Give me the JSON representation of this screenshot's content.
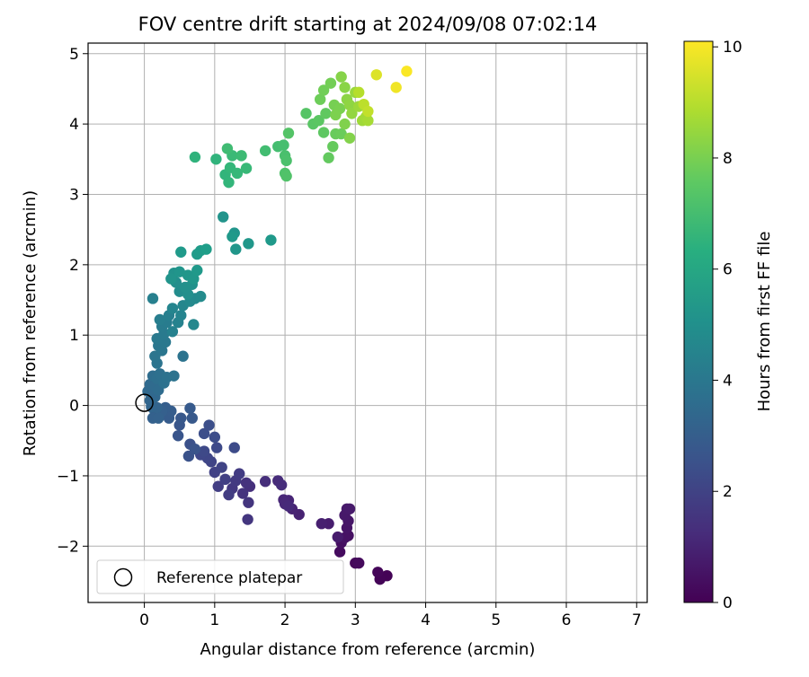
{
  "chart_data": {
    "type": "scatter",
    "title": "FOV centre drift starting at 2024/09/08 07:02:14",
    "xlabel": "Angular distance from reference (arcmin)",
    "ylabel": "Rotation from reference (arcmin)",
    "xlim": [
      -0.8,
      7.15
    ],
    "ylim": [
      -2.8,
      5.15
    ],
    "x_ticks": [
      0,
      1,
      2,
      3,
      4,
      5,
      6,
      7
    ],
    "y_ticks": [
      -2,
      -1,
      0,
      1,
      2,
      3,
      4,
      5
    ],
    "x_tick_labels": [
      "0",
      "1",
      "2",
      "3",
      "4",
      "5",
      "6",
      "7"
    ],
    "y_tick_labels": [
      "−2",
      "−1",
      "0",
      "1",
      "2",
      "3",
      "4",
      "5"
    ],
    "grid": true,
    "colormap": "viridis",
    "colorbar": {
      "label": "Hours from first FF file",
      "range": [
        0,
        10.1
      ],
      "ticks": [
        0,
        2,
        4,
        6,
        8,
        10
      ],
      "tick_labels": [
        "0",
        "2",
        "4",
        "6",
        "8",
        "10"
      ]
    },
    "legend": {
      "position": "lower-left",
      "entries": [
        "Reference platepar"
      ]
    },
    "reference_point": {
      "x": 0,
      "y": 0,
      "label": "Reference platepar"
    },
    "series": [
      {
        "points": [
          [
            3.45,
            -2.42,
            0.05
          ],
          [
            3.35,
            -2.47,
            0.1
          ],
          [
            3.32,
            -2.37,
            0.15
          ],
          [
            3.0,
            -2.24,
            0.2
          ],
          [
            3.05,
            -2.24,
            0.25
          ],
          [
            2.78,
            -2.08,
            0.3
          ],
          [
            2.8,
            -1.95,
            0.4
          ],
          [
            2.9,
            -1.85,
            0.45
          ],
          [
            2.85,
            -1.88,
            0.5
          ],
          [
            2.88,
            -1.74,
            0.55
          ],
          [
            2.9,
            -1.64,
            0.6
          ],
          [
            2.85,
            -1.56,
            0.65
          ],
          [
            2.88,
            -1.47,
            0.7
          ],
          [
            2.92,
            -1.47,
            0.72
          ],
          [
            2.75,
            -1.87,
            0.78
          ],
          [
            2.62,
            -1.68,
            0.82
          ],
          [
            2.52,
            -1.68,
            0.88
          ],
          [
            2.2,
            -1.55,
            0.95
          ],
          [
            2.1,
            -1.47,
            1.0
          ],
          [
            2.05,
            -1.35,
            1.05
          ],
          [
            1.98,
            -1.34,
            1.1
          ],
          [
            2.0,
            -1.4,
            1.15
          ],
          [
            2.05,
            -1.43,
            1.2
          ],
          [
            1.9,
            -1.07,
            1.25
          ],
          [
            1.95,
            -1.13,
            1.3
          ],
          [
            1.72,
            -1.08,
            1.35
          ],
          [
            1.5,
            -1.15,
            1.4
          ],
          [
            1.45,
            -1.1,
            1.45
          ],
          [
            1.4,
            -1.25,
            1.5
          ],
          [
            1.48,
            -1.38,
            1.55
          ],
          [
            1.47,
            -1.62,
            1.6
          ],
          [
            1.25,
            -1.18,
            1.65
          ],
          [
            1.3,
            -1.07,
            1.7
          ],
          [
            1.35,
            -0.97,
            1.75
          ],
          [
            1.2,
            -1.27,
            1.8
          ],
          [
            1.05,
            -1.15,
            1.85
          ],
          [
            1.15,
            -1.05,
            1.9
          ],
          [
            1.0,
            -0.95,
            1.95
          ],
          [
            1.1,
            -0.88,
            2.0
          ],
          [
            0.95,
            -0.8,
            2.05
          ],
          [
            0.9,
            -0.75,
            2.1
          ],
          [
            0.8,
            -0.7,
            2.15
          ],
          [
            0.85,
            -0.65,
            2.2
          ],
          [
            1.03,
            -0.6,
            2.25
          ],
          [
            1.28,
            -0.6,
            2.3
          ],
          [
            1.0,
            -0.45,
            2.35
          ],
          [
            0.85,
            -0.4,
            2.4
          ],
          [
            0.92,
            -0.28,
            2.45
          ],
          [
            0.65,
            -0.55,
            2.5
          ],
          [
            0.63,
            -0.72,
            2.55
          ],
          [
            0.72,
            -0.62,
            2.6
          ],
          [
            0.48,
            -0.43,
            2.65
          ],
          [
            0.5,
            -0.28,
            2.7
          ],
          [
            0.52,
            -0.18,
            2.75
          ],
          [
            0.68,
            -0.18,
            2.8
          ],
          [
            0.65,
            -0.04,
            2.85
          ],
          [
            0.35,
            -0.18,
            2.9
          ],
          [
            0.38,
            -0.08,
            2.95
          ],
          [
            0.3,
            -0.03,
            3.0
          ],
          [
            0.25,
            -0.08,
            3.05
          ],
          [
            0.15,
            -0.08,
            3.1
          ],
          [
            0.12,
            -0.18,
            3.12
          ],
          [
            0.2,
            -0.18,
            3.15
          ],
          [
            0.18,
            -0.03,
            3.2
          ],
          [
            0.1,
            -0.02,
            3.25
          ],
          [
            0.08,
            0.07,
            3.3
          ],
          [
            0.15,
            0.12,
            3.35
          ],
          [
            0.05,
            0.2,
            3.4
          ],
          [
            0.08,
            0.3,
            3.45
          ],
          [
            0.15,
            0.28,
            3.5
          ],
          [
            0.2,
            0.22,
            3.55
          ],
          [
            0.12,
            0.42,
            3.6
          ],
          [
            0.18,
            0.38,
            3.65
          ],
          [
            0.22,
            0.45,
            3.7
          ],
          [
            0.28,
            0.32,
            3.75
          ],
          [
            0.32,
            0.4,
            3.8
          ],
          [
            0.42,
            0.42,
            3.82
          ],
          [
            0.55,
            0.7,
            3.85
          ],
          [
            0.18,
            0.6,
            3.88
          ],
          [
            0.15,
            0.7,
            3.92
          ],
          [
            0.25,
            0.78,
            3.95
          ],
          [
            0.2,
            0.85,
            4.0
          ],
          [
            0.3,
            0.9,
            4.05
          ],
          [
            0.18,
            0.95,
            4.1
          ],
          [
            0.28,
            1.02,
            4.15
          ],
          [
            0.25,
            1.12,
            4.2
          ],
          [
            0.32,
            1.18,
            4.25
          ],
          [
            0.22,
            1.22,
            4.3
          ],
          [
            0.35,
            1.28,
            4.35
          ],
          [
            0.12,
            1.52,
            4.4
          ],
          [
            0.4,
            1.05,
            4.45
          ],
          [
            0.48,
            1.18,
            4.5
          ],
          [
            0.52,
            1.28,
            4.55
          ],
          [
            0.4,
            1.38,
            4.6
          ],
          [
            0.55,
            1.42,
            4.65
          ],
          [
            0.7,
            1.15,
            4.7
          ],
          [
            0.65,
            1.48,
            4.75
          ],
          [
            0.72,
            1.52,
            4.8
          ],
          [
            0.8,
            1.55,
            4.85
          ],
          [
            0.5,
            1.62,
            4.9
          ],
          [
            0.45,
            1.75,
            4.95
          ],
          [
            0.62,
            1.58,
            5.0
          ],
          [
            0.58,
            1.68,
            5.05
          ],
          [
            0.68,
            1.72,
            5.1
          ],
          [
            0.42,
            1.88,
            5.15
          ],
          [
            0.38,
            1.8,
            5.2
          ],
          [
            0.5,
            1.9,
            5.25
          ],
          [
            0.62,
            1.85,
            5.3
          ],
          [
            0.7,
            1.8,
            5.35
          ],
          [
            0.75,
            1.92,
            5.4
          ],
          [
            0.52,
            2.18,
            5.45
          ],
          [
            0.75,
            2.15,
            5.5
          ],
          [
            0.8,
            2.2,
            5.55
          ],
          [
            0.88,
            2.22,
            5.6
          ],
          [
            1.12,
            2.68,
            5.2
          ],
          [
            1.28,
            2.45,
            5.25
          ],
          [
            1.3,
            2.22,
            5.3
          ],
          [
            1.48,
            2.3,
            5.35
          ],
          [
            1.8,
            2.35,
            5.4
          ],
          [
            1.25,
            2.4,
            5.4
          ],
          [
            0.72,
            3.53,
            6.5
          ],
          [
            1.02,
            3.5,
            6.55
          ],
          [
            1.15,
            3.28,
            6.6
          ],
          [
            1.2,
            3.17,
            6.65
          ],
          [
            1.22,
            3.38,
            6.7
          ],
          [
            1.32,
            3.3,
            6.75
          ],
          [
            1.45,
            3.37,
            6.8
          ],
          [
            1.25,
            3.55,
            6.85
          ],
          [
            1.38,
            3.55,
            6.9
          ],
          [
            1.18,
            3.65,
            6.95
          ],
          [
            1.72,
            3.62,
            7.0
          ],
          [
            1.9,
            3.68,
            7.05
          ],
          [
            1.98,
            3.7,
            7.1
          ],
          [
            2.0,
            3.55,
            7.15
          ],
          [
            2.02,
            3.48,
            7.2
          ],
          [
            2.0,
            3.3,
            7.25
          ],
          [
            2.02,
            3.26,
            7.3
          ],
          [
            2.05,
            3.87,
            7.35
          ],
          [
            2.3,
            4.15,
            7.4
          ],
          [
            2.4,
            4.0,
            7.45
          ],
          [
            2.48,
            4.05,
            7.5
          ],
          [
            2.55,
            3.88,
            7.55
          ],
          [
            2.58,
            4.15,
            7.6
          ],
          [
            2.62,
            3.52,
            7.65
          ],
          [
            2.68,
            3.68,
            7.7
          ],
          [
            2.72,
            3.86,
            7.75
          ],
          [
            2.8,
            3.86,
            7.8
          ],
          [
            2.5,
            4.35,
            7.85
          ],
          [
            2.55,
            4.48,
            7.9
          ],
          [
            2.65,
            4.58,
            7.95
          ],
          [
            2.7,
            4.27,
            8.0
          ],
          [
            2.78,
            4.22,
            8.05
          ],
          [
            2.72,
            4.13,
            8.1
          ],
          [
            2.85,
            4.0,
            8.15
          ],
          [
            2.92,
            3.8,
            8.2
          ],
          [
            2.8,
            4.67,
            8.25
          ],
          [
            2.85,
            4.52,
            8.3
          ],
          [
            2.88,
            4.35,
            8.35
          ],
          [
            2.92,
            4.27,
            8.4
          ],
          [
            2.95,
            4.15,
            8.45
          ],
          [
            3.0,
            4.45,
            8.55
          ],
          [
            3.05,
            4.25,
            8.6
          ],
          [
            3.1,
            4.05,
            8.65
          ],
          [
            3.15,
            4.1,
            8.7
          ],
          [
            3.18,
            4.05,
            8.75
          ],
          [
            3.05,
            4.45,
            9.0
          ],
          [
            3.12,
            4.28,
            9.1
          ],
          [
            3.18,
            4.18,
            9.2
          ],
          [
            3.3,
            4.7,
            9.6
          ],
          [
            3.58,
            4.52,
            9.9
          ],
          [
            3.73,
            4.75,
            10.05
          ]
        ]
      }
    ]
  }
}
